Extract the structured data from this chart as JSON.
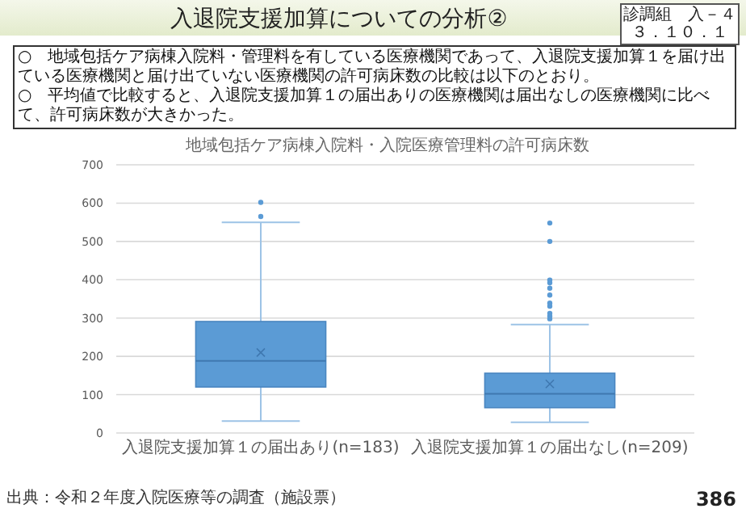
{
  "chart_data": {
    "type": "box",
    "title": "入退院支援加算についての分析②",
    "subtitle": "地域包括ケア病棟入院料・入院医療管理料の許可病床数",
    "annotations": [
      "診調組　入－４",
      "３．１０．１",
      "○　地域包括ケア病棟入院料・管理料を有している医療機関であって、入退院支援加算１を届け出ている医療機関と届け出ていない医療機関の許可病床数の比較は以下のとおり。",
      "○　平均値で比較すると、入退院支援加算１の届出ありの医療機関は届出なしの医療機関に比べて、許可病床数が大きかった。",
      "出典：令和２年度入院医療等の調査（施設票）",
      "386"
    ],
    "categories": [
      "入退院支援加算１の届出あり(n=183)",
      "入退院支援加算１の届出なし(n=209)"
    ],
    "color": "#5b9bd5",
    "boxes": [
      {
        "low": 31,
        "q1": 120,
        "median": 188,
        "q3": 291,
        "high": 550,
        "mean": 210,
        "outliers": [
          565,
          602
        ]
      },
      {
        "low": 28,
        "q1": 66,
        "median": 102,
        "q3": 156,
        "high": 283,
        "mean": 128,
        "outliers": [
          298,
          305,
          312,
          331,
          339,
          360,
          378,
          392,
          399,
          500,
          548
        ]
      }
    ],
    "ylim": [
      0,
      700
    ],
    "yticks": [
      0,
      100,
      200,
      300,
      400,
      500,
      600,
      700
    ],
    "grid": "y",
    "marker": "cross"
  }
}
